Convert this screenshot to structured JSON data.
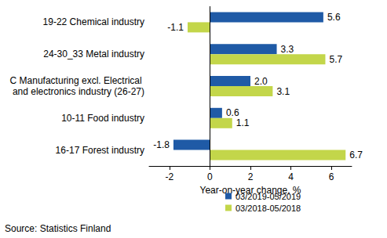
{
  "chart_data": {
    "type": "bar",
    "orientation": "horizontal",
    "categories": [
      "19-22 Chemical industry",
      "24-30_33 Metal industry",
      "C Manufacturing excl. Electrical and electronics industry (26-27)",
      "10-11 Food industry",
      "16-17 Forest industry"
    ],
    "series": [
      {
        "name": "03/2019-05/2019",
        "color": "#1f5aa6",
        "values": [
          5.6,
          3.3,
          2.0,
          0.6,
          -1.8
        ],
        "value_labels": [
          "5.6",
          "3.3",
          "2.0",
          "0.6",
          "-1.8"
        ]
      },
      {
        "name": "03/2018-05/2018",
        "color": "#c3d64a",
        "values": [
          -1.1,
          5.7,
          3.1,
          1.1,
          6.7
        ],
        "value_labels": [
          "-1.1",
          "5.7",
          "3.1",
          "1.1",
          "6.7"
        ]
      }
    ],
    "xlabel": "Year-on-year change, %",
    "xlim": [
      -3,
      7
    ],
    "xticks": [
      -2,
      0,
      2,
      4,
      6
    ],
    "grid": false,
    "legend": "bottom",
    "data_labels": true,
    "source": "Source: Statistics Finland"
  }
}
